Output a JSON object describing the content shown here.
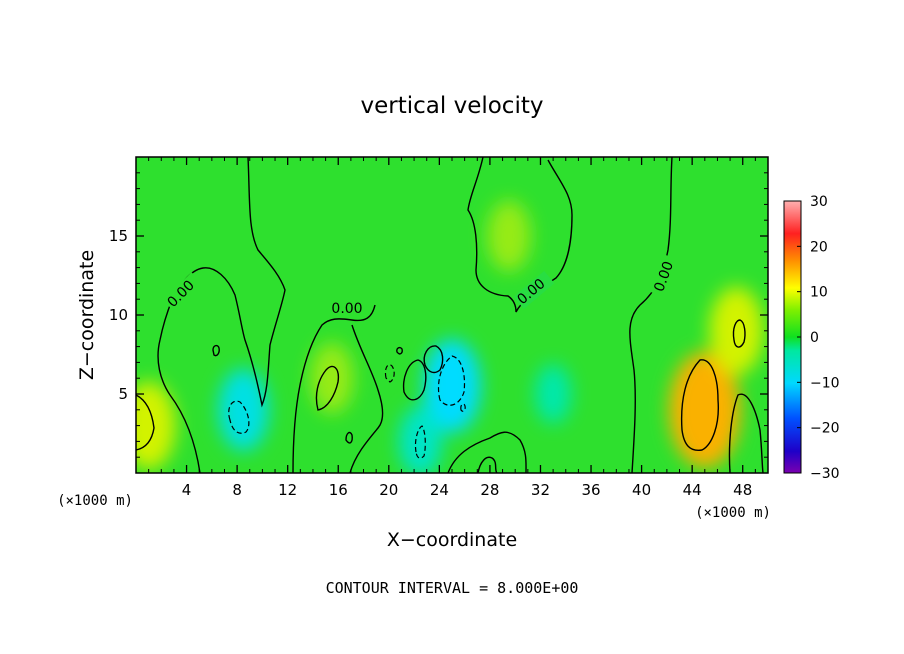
{
  "chart_data": {
    "type": "heatmap",
    "title": "vertical velocity",
    "xlabel": "X−coordinate",
    "ylabel": "Z−coordinate",
    "x_unit": "(×1000 m)",
    "xlim": [
      0,
      50
    ],
    "ylim": [
      0,
      20
    ],
    "x_ticks": [
      4,
      8,
      12,
      16,
      20,
      24,
      28,
      32,
      36,
      40,
      44,
      48
    ],
    "y_ticks": [
      5,
      10,
      15
    ],
    "colorbar": {
      "range": [
        -30,
        30
      ],
      "ticks": [
        "30",
        "20",
        "10",
        "0",
        "−10",
        "−20",
        "−30"
      ]
    },
    "contour_interval_text": "CONTOUR INTERVAL = 8.000E+00",
    "contour_labels": [
      "0.00",
      "0.00",
      "0.00",
      "0.00"
    ],
    "features": [
      {
        "x": 1.0,
        "z": 3.0,
        "value": 9
      },
      {
        "x": 45.0,
        "z": 4.0,
        "value": 14
      },
      {
        "x": 47.5,
        "z": 9.0,
        "value": 9
      },
      {
        "x": 15.5,
        "z": 6.0,
        "value": 6
      },
      {
        "x": 29.5,
        "z": 15.0,
        "value": 6
      },
      {
        "x": 8.5,
        "z": 4.0,
        "value": -8
      },
      {
        "x": 25.0,
        "z": 5.5,
        "value": -10
      },
      {
        "x": 22.5,
        "z": 2.0,
        "value": -6
      },
      {
        "x": 33.0,
        "z": 5.0,
        "value": -4
      }
    ]
  }
}
